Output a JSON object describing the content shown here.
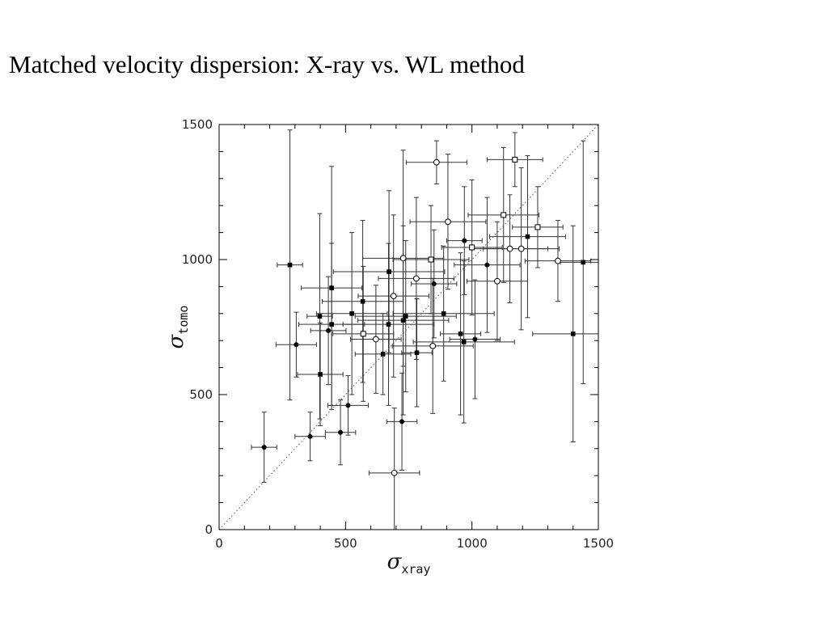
{
  "slide": {
    "title": "Matched velocity dispersion: X-ray vs. WL method"
  },
  "chart_data": {
    "type": "scatter",
    "xlabel": {
      "symbol": "σ",
      "subscript": "xray"
    },
    "ylabel": {
      "symbol": "σ",
      "subscript": "tomo"
    },
    "xlim": [
      0,
      1500
    ],
    "ylim": [
      0,
      1500
    ],
    "xticks": [
      0,
      500,
      1000,
      1500
    ],
    "yticks": [
      0,
      500,
      1000,
      1500
    ],
    "grid": false,
    "legend": "none",
    "reference_line": {
      "style": "dotted",
      "from": [
        0,
        0
      ],
      "to": [
        1500,
        1500
      ]
    },
    "series": [
      {
        "marker": "filled-circle",
        "points": [
          {
            "x": 178,
            "y": 305,
            "xerr": 50,
            "yerr": 130
          },
          {
            "x": 360,
            "y": 345,
            "xerr": 60,
            "yerr": 90
          },
          {
            "x": 480,
            "y": 360,
            "xerr": 60,
            "yerr": 120
          },
          {
            "x": 510,
            "y": 460,
            "xerr": 80,
            "yerr": 110
          },
          {
            "x": 305,
            "y": 685,
            "xerr": 80,
            "yerr": 120
          },
          {
            "x": 432,
            "y": 737,
            "xerr": 70,
            "yerr": 200
          },
          {
            "x": 723,
            "y": 400,
            "xerr": 60,
            "yerr": 180
          },
          {
            "x": 850,
            "y": 910,
            "xerr": 90,
            "yerr": 200
          },
          {
            "x": 970,
            "y": 1070,
            "xerr": 70,
            "yerr": 200
          },
          {
            "x": 1012,
            "y": 705,
            "xerr": 100,
            "yerr": 220
          },
          {
            "x": 1060,
            "y": 980,
            "xerr": 130,
            "yerr": 250
          }
        ]
      },
      {
        "marker": "filled-square",
        "points": [
          {
            "x": 280,
            "y": 980,
            "xerr": 50,
            "yerr": 500
          },
          {
            "x": 398,
            "y": 790,
            "xerr": 50,
            "yerr": 380
          },
          {
            "x": 400,
            "y": 575,
            "xerr": 90,
            "yerr": 190
          },
          {
            "x": 445,
            "y": 895,
            "xerr": 120,
            "yerr": 450
          },
          {
            "x": 445,
            "y": 760,
            "xerr": 130,
            "yerr": 300
          },
          {
            "x": 525,
            "y": 800,
            "xerr": 140,
            "yerr": 300
          },
          {
            "x": 568,
            "y": 845,
            "xerr": 160,
            "yerr": 300
          },
          {
            "x": 648,
            "y": 650,
            "xerr": 110,
            "yerr": 150
          },
          {
            "x": 670,
            "y": 760,
            "xerr": 180,
            "yerr": 300
          },
          {
            "x": 672,
            "y": 955,
            "xerr": 220,
            "yerr": 300
          },
          {
            "x": 728,
            "y": 775,
            "xerr": 180,
            "yerr": 350
          },
          {
            "x": 738,
            "y": 790,
            "xerr": 200,
            "yerr": 280
          },
          {
            "x": 782,
            "y": 655,
            "xerr": 60,
            "yerr": 200
          },
          {
            "x": 888,
            "y": 800,
            "xerr": 200,
            "yerr": 250
          },
          {
            "x": 955,
            "y": 725,
            "xerr": 80,
            "yerr": 300
          },
          {
            "x": 968,
            "y": 695,
            "xerr": 200,
            "yerr": 300
          },
          {
            "x": 1220,
            "y": 1085,
            "xerr": 150,
            "yerr": 300
          },
          {
            "x": 1400,
            "y": 725,
            "xerr": 160,
            "yerr": 400
          },
          {
            "x": 1440,
            "y": 990,
            "xerr": 90,
            "yerr": 450
          }
        ]
      },
      {
        "marker": "open-circle",
        "points": [
          {
            "x": 620,
            "y": 705,
            "xerr": 100,
            "yerr": 200
          },
          {
            "x": 690,
            "y": 865,
            "xerr": 140,
            "yerr": 300
          },
          {
            "x": 693,
            "y": 210,
            "xerr": 100,
            "yerr": 240
          },
          {
            "x": 728,
            "y": 1005,
            "xerr": 160,
            "yerr": 400
          },
          {
            "x": 780,
            "y": 930,
            "xerr": 150,
            "yerr": 300
          },
          {
            "x": 845,
            "y": 680,
            "xerr": 160,
            "yerr": 250
          },
          {
            "x": 860,
            "y": 1360,
            "xerr": 120,
            "yerr": 80
          },
          {
            "x": 905,
            "y": 1140,
            "xerr": 150,
            "yerr": 250
          },
          {
            "x": 1100,
            "y": 920,
            "xerr": 120,
            "yerr": 220
          },
          {
            "x": 1150,
            "y": 1040,
            "xerr": 150,
            "yerr": 200
          },
          {
            "x": 1195,
            "y": 1040,
            "xerr": 150,
            "yerr": 300
          },
          {
            "x": 1340,
            "y": 995,
            "xerr": 130,
            "yerr": 150
          }
        ]
      },
      {
        "marker": "open-square",
        "points": [
          {
            "x": 570,
            "y": 725,
            "xerr": 120,
            "yerr": 250
          },
          {
            "x": 838,
            "y": 1000,
            "xerr": 150,
            "yerr": 200
          },
          {
            "x": 1000,
            "y": 1045,
            "xerr": 120,
            "yerr": 250
          },
          {
            "x": 1125,
            "y": 1165,
            "xerr": 140,
            "yerr": 250
          },
          {
            "x": 1170,
            "y": 1370,
            "xerr": 110,
            "yerr": 100
          },
          {
            "x": 1260,
            "y": 1120,
            "xerr": 100,
            "yerr": 150
          }
        ]
      }
    ]
  }
}
